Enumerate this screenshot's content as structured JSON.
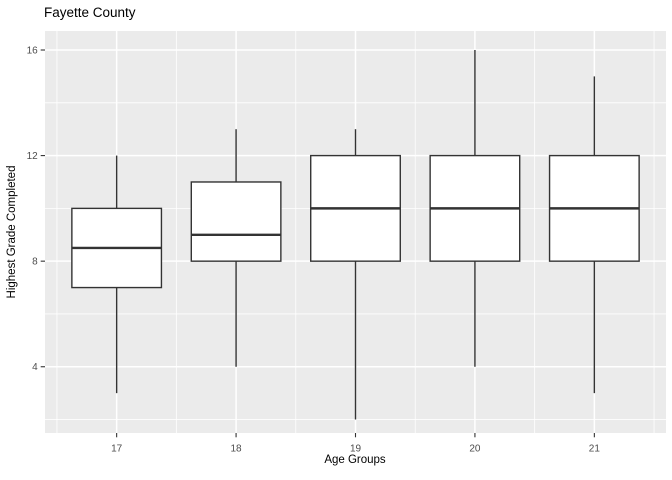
{
  "chart_data": {
    "type": "boxplot",
    "title": "Fayette County",
    "xlabel": "Age Groups",
    "ylabel": "Highest Grade Completed",
    "categories": [
      "17",
      "18",
      "19",
      "20",
      "21"
    ],
    "series": [
      {
        "category": "17",
        "whisker_low": 3,
        "q1": 7,
        "median": 8.5,
        "q3": 10,
        "whisker_high": 12
      },
      {
        "category": "18",
        "whisker_low": 4,
        "q1": 8,
        "median": 9,
        "q3": 11,
        "whisker_high": 13
      },
      {
        "category": "19",
        "whisker_low": 2,
        "q1": 8,
        "median": 10,
        "q3": 12,
        "whisker_high": 13
      },
      {
        "category": "20",
        "whisker_low": 4,
        "q1": 8,
        "median": 10,
        "q3": 12,
        "whisker_high": 16
      },
      {
        "category": "21",
        "whisker_low": 3,
        "q1": 8,
        "median": 10,
        "q3": 12,
        "whisker_high": 15
      }
    ],
    "y_ticks": [
      4,
      8,
      12,
      16
    ],
    "y_minor_gridlines": [
      2,
      6,
      10,
      14
    ],
    "ylim": [
      1.49,
      16.72
    ],
    "grid": true,
    "legend": "none",
    "style": "ggplot2"
  },
  "colors": {
    "background": "#FFFFFF",
    "panel_bg": "#EBEBEB",
    "gridline": "#FFFFFF",
    "box_fill": "#FFFFFF",
    "box_stroke": "#333333",
    "tick_mark": "#333333",
    "tick_label": "#4D4D4D",
    "title_text": "#000000"
  }
}
